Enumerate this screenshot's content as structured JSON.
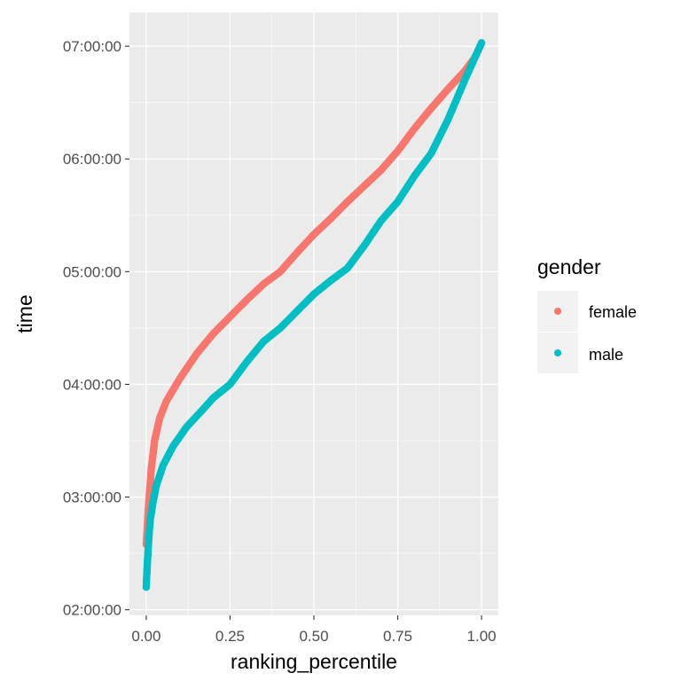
{
  "chart_data": {
    "type": "scatter",
    "title": "",
    "xlabel": "ranking_percentile",
    "ylabel": "time",
    "x_ticks": [
      "0.00",
      "0.25",
      "0.50",
      "0.75",
      "1.00"
    ],
    "x_tick_values": [
      0,
      0.25,
      0.5,
      0.75,
      1.0
    ],
    "y_ticks": [
      "02:00:00",
      "03:00:00",
      "04:00:00",
      "05:00:00",
      "06:00:00",
      "07:00:00"
    ],
    "y_tick_values_hours": [
      2,
      3,
      4,
      5,
      6,
      7
    ],
    "xlim": [
      -0.05,
      1.05
    ],
    "ylim_hours": [
      1.95,
      7.3
    ],
    "legend": {
      "title": "gender",
      "position": "right",
      "entries": [
        {
          "label": "female",
          "color": "#F8766D"
        },
        {
          "label": "male",
          "color": "#00BFC4"
        }
      ]
    },
    "series": [
      {
        "name": "female",
        "color": "#F8766D",
        "points": [
          [
            0.0,
            2.58
          ],
          [
            0.003,
            2.72
          ],
          [
            0.006,
            2.88
          ],
          [
            0.01,
            3.05
          ],
          [
            0.015,
            3.25
          ],
          [
            0.025,
            3.5
          ],
          [
            0.04,
            3.7
          ],
          [
            0.06,
            3.85
          ],
          [
            0.1,
            4.05
          ],
          [
            0.15,
            4.27
          ],
          [
            0.2,
            4.45
          ],
          [
            0.25,
            4.6
          ],
          [
            0.3,
            4.75
          ],
          [
            0.35,
            4.89
          ],
          [
            0.4,
            5.0
          ],
          [
            0.45,
            5.17
          ],
          [
            0.5,
            5.33
          ],
          [
            0.55,
            5.47
          ],
          [
            0.6,
            5.62
          ],
          [
            0.65,
            5.76
          ],
          [
            0.7,
            5.9
          ],
          [
            0.75,
            6.07
          ],
          [
            0.8,
            6.27
          ],
          [
            0.85,
            6.45
          ],
          [
            0.9,
            6.62
          ],
          [
            0.95,
            6.78
          ],
          [
            0.98,
            6.9
          ],
          [
            1.0,
            7.03
          ]
        ]
      },
      {
        "name": "male",
        "color": "#00BFC4",
        "points": [
          [
            0.0,
            2.2
          ],
          [
            0.002,
            2.33
          ],
          [
            0.004,
            2.45
          ],
          [
            0.006,
            2.55
          ],
          [
            0.008,
            2.65
          ],
          [
            0.012,
            2.8
          ],
          [
            0.02,
            2.95
          ],
          [
            0.03,
            3.1
          ],
          [
            0.05,
            3.28
          ],
          [
            0.08,
            3.45
          ],
          [
            0.12,
            3.62
          ],
          [
            0.17,
            3.78
          ],
          [
            0.2,
            3.88
          ],
          [
            0.25,
            4.0
          ],
          [
            0.3,
            4.2
          ],
          [
            0.35,
            4.38
          ],
          [
            0.4,
            4.5
          ],
          [
            0.45,
            4.65
          ],
          [
            0.5,
            4.8
          ],
          [
            0.55,
            4.92
          ],
          [
            0.6,
            5.03
          ],
          [
            0.65,
            5.23
          ],
          [
            0.7,
            5.45
          ],
          [
            0.75,
            5.62
          ],
          [
            0.8,
            5.85
          ],
          [
            0.85,
            6.05
          ],
          [
            0.9,
            6.35
          ],
          [
            0.95,
            6.7
          ],
          [
            1.0,
            7.03
          ]
        ]
      }
    ]
  }
}
